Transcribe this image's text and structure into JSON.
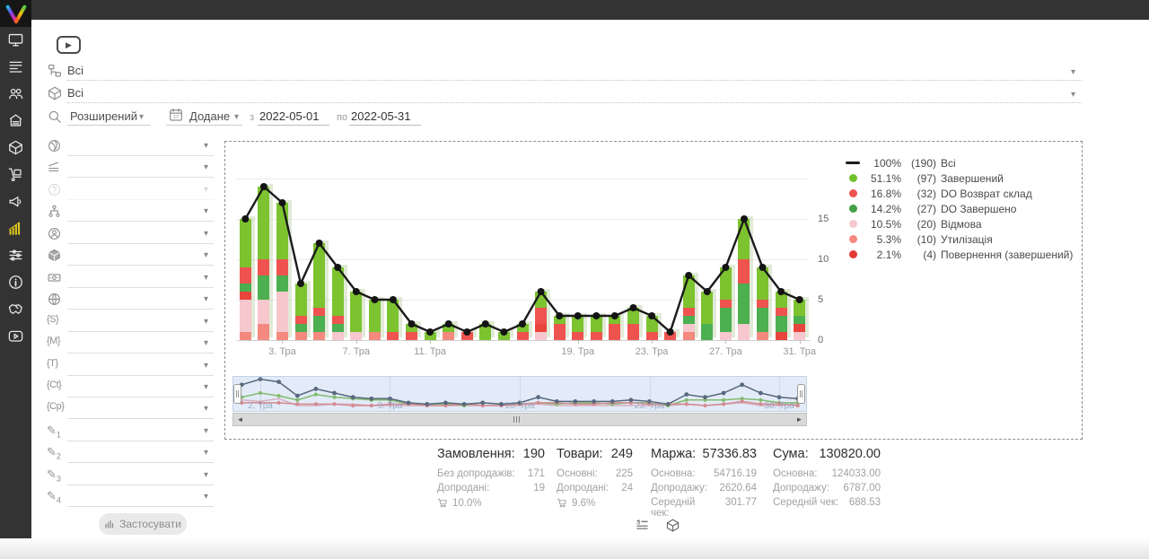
{
  "glyphs": {
    "dropdown": "▾",
    "play": "▶",
    "scroll_left": "◄",
    "scroll_right": "►"
  },
  "topbar": {
    "icons": [
      "user-icon",
      "bell-icon",
      "support-headset-icon"
    ]
  },
  "sidebar": {
    "items": [
      {
        "icon": "monitor-icon",
        "name": "dashboard"
      },
      {
        "icon": "orders-list-icon",
        "name": "orders"
      },
      {
        "icon": "clients-icon",
        "name": "clients"
      },
      {
        "icon": "store-icon",
        "name": "store"
      },
      {
        "icon": "package-icon",
        "name": "products"
      },
      {
        "icon": "trolley-icon",
        "name": "supply"
      },
      {
        "icon": "megaphone-icon",
        "name": "marketing"
      },
      {
        "icon": "bar-chart-icon",
        "name": "analytics",
        "active": true
      },
      {
        "icon": "sliders-icon",
        "name": "settings"
      },
      {
        "icon": "info-icon",
        "name": "info"
      },
      {
        "icon": "handshake-icon",
        "name": "partners"
      },
      {
        "icon": "video-icon",
        "name": "video"
      }
    ]
  },
  "filters": {
    "tree_value": "Всі",
    "product_value": "Всі",
    "mode": "Розширений",
    "date_field": "Додане",
    "from_label": "з",
    "from": "2022-05-01",
    "to_label": "по",
    "to": "2022-05-31",
    "apply": "Застосувати",
    "side_rows": [
      {
        "icon": "globe-swirl-icon"
      },
      {
        "icon": "layers-sort-icon"
      },
      {
        "icon": "help-icon",
        "disabled": true
      },
      {
        "icon": "hierarchy-icon"
      },
      {
        "icon": "user-circle-icon"
      },
      {
        "icon": "cube-icon"
      },
      {
        "icon": "banknote-icon"
      },
      {
        "icon": "globe-grid-icon"
      },
      {
        "icon": "tag-s-icon",
        "glyph": "{S}"
      },
      {
        "icon": "tag-m-icon",
        "glyph": "{M}"
      },
      {
        "icon": "tag-t-icon",
        "glyph": "{T}"
      },
      {
        "icon": "tag-ct-icon",
        "glyph": "{Ct}"
      },
      {
        "icon": "tag-cp-icon",
        "glyph": "{Cp}"
      },
      {
        "icon": "pencil-icon",
        "glyph": "✎",
        "index": "1"
      },
      {
        "icon": "pencil-icon",
        "glyph": "✎",
        "index": "2"
      },
      {
        "icon": "pencil-icon",
        "glyph": "✎",
        "index": "3"
      },
      {
        "icon": "pencil-icon",
        "glyph": "✎",
        "index": "4"
      }
    ]
  },
  "chart_data": {
    "type": "bar",
    "stacked": true,
    "title": "",
    "ylim": [
      0,
      20
    ],
    "yticks": [
      0,
      5,
      10,
      15
    ],
    "days_in_month": 31,
    "month_label": "Тра",
    "xticks": [
      {
        "day": 3,
        "label": "3. Тра"
      },
      {
        "day": 7,
        "label": "7. Тра"
      },
      {
        "day": 11,
        "label": "11. Тра"
      },
      {
        "day": 19,
        "label": "19. Тра"
      },
      {
        "day": 23,
        "label": "23. Тра"
      },
      {
        "day": 27,
        "label": "27. Тра"
      },
      {
        "day": 31,
        "label": "31. Тра"
      }
    ],
    "line": {
      "name": "Всі",
      "color": "#1b1b1b",
      "total": 190,
      "values": [
        15,
        19,
        17,
        7,
        12,
        9,
        6,
        5,
        5,
        2,
        1,
        2,
        1,
        2,
        1,
        2,
        6,
        3,
        3,
        3,
        3,
        4,
        3,
        1,
        8,
        6,
        9,
        15,
        9,
        6,
        5
      ]
    },
    "stack_order_bottom_to_top": [
      "Утилізація",
      "Відмова",
      "Повернення (завершений)",
      "DO Завершено",
      "DO Возврат склад",
      "Завершений"
    ],
    "series": [
      {
        "name": "Завершений",
        "color": "#7cc32f",
        "total": 97,
        "values": [
          6,
          9,
          7,
          4,
          8,
          6,
          5,
          4,
          4,
          1,
          1,
          1,
          0,
          2,
          1,
          1,
          2,
          1,
          2,
          2,
          1,
          2,
          2,
          0,
          4,
          4,
          4,
          5,
          4,
          2,
          2
        ]
      },
      {
        "name": "DO Возврат склад",
        "color": "#ef5350",
        "total": 32,
        "values": [
          2,
          2,
          2,
          1,
          1,
          1,
          0,
          0,
          1,
          1,
          0,
          0,
          1,
          0,
          0,
          1,
          2,
          2,
          1,
          1,
          2,
          2,
          1,
          1,
          1,
          0,
          1,
          3,
          1,
          1,
          0
        ]
      },
      {
        "name": "DO Завершено",
        "color": "#4caf50",
        "total": 27,
        "values": [
          1,
          3,
          2,
          1,
          2,
          1,
          0,
          0,
          0,
          0,
          0,
          0,
          0,
          0,
          0,
          0,
          0,
          0,
          0,
          0,
          0,
          0,
          0,
          0,
          1,
          2,
          3,
          5,
          3,
          2,
          1
        ]
      },
      {
        "name": "Відмова",
        "color": "#f6c7cd",
        "total": 20,
        "values": [
          4,
          3,
          5,
          0,
          0,
          1,
          1,
          0,
          0,
          0,
          0,
          0,
          0,
          0,
          0,
          0,
          1,
          0,
          0,
          0,
          0,
          0,
          0,
          0,
          1,
          0,
          1,
          2,
          0,
          0,
          1
        ]
      },
      {
        "name": "Утилізація",
        "color": "#f4897f",
        "total": 10,
        "values": [
          1,
          2,
          1,
          1,
          1,
          0,
          0,
          1,
          0,
          0,
          0,
          1,
          0,
          0,
          0,
          0,
          0,
          0,
          0,
          0,
          0,
          0,
          0,
          0,
          1,
          0,
          0,
          0,
          1,
          0,
          0
        ]
      },
      {
        "name": "Повернення (завершений)",
        "color": "#e8453c",
        "total": 4,
        "values": [
          1,
          0,
          0,
          0,
          0,
          0,
          0,
          0,
          0,
          0,
          0,
          0,
          0,
          0,
          0,
          0,
          1,
          0,
          0,
          0,
          0,
          0,
          0,
          0,
          0,
          0,
          0,
          0,
          0,
          1,
          1
        ]
      }
    ]
  },
  "legend": [
    {
      "marker": "line",
      "color": "#1b1b1b",
      "pct": "100%",
      "count": "(190)",
      "label": "Всі"
    },
    {
      "marker": "dot",
      "color": "#72c02c",
      "pct": "51.1%",
      "count": "(97)",
      "label": "Завершений"
    },
    {
      "marker": "dot",
      "color": "#ef5350",
      "pct": "16.8%",
      "count": "(32)",
      "label": "DO Возврат склад"
    },
    {
      "marker": "dot",
      "color": "#43a047",
      "pct": "14.2%",
      "count": "(27)",
      "label": "DO Завершено"
    },
    {
      "marker": "dot",
      "color": "#f6c7cd",
      "pct": "10.5%",
      "count": "(20)",
      "label": "Відмова"
    },
    {
      "marker": "dot",
      "color": "#f4897f",
      "pct": "5.3%",
      "count": "(10)",
      "label": "Утилізація"
    },
    {
      "marker": "dot",
      "color": "#e53935",
      "pct": "2.1%",
      "count": "(4)",
      "label": "Повернення (завершений)"
    }
  ],
  "navigator": {
    "labels": [
      {
        "day": 2,
        "label": "2. Тра"
      },
      {
        "day": 9,
        "label": "9. Тра"
      },
      {
        "day": 16,
        "label": "16. Тра"
      },
      {
        "day": 23,
        "label": "23. Тра"
      },
      {
        "day": 30,
        "label": "30. Тра"
      }
    ]
  },
  "stats": {
    "columns": [
      {
        "title": "Замовлення:",
        "value": "190",
        "rows": [
          {
            "label": "Без допродажів:",
            "value": "171"
          },
          {
            "label": "Допродані:",
            "value": "19"
          }
        ],
        "cart_pct": "10.0%"
      },
      {
        "title": "Товари:",
        "value": "249",
        "rows": [
          {
            "label": "Основні:",
            "value": "225"
          },
          {
            "label": "Допродані:",
            "value": "24"
          }
        ],
        "cart_pct": "9.6%"
      },
      {
        "title": "Маржа:",
        "value": "57336.83",
        "rows": [
          {
            "label": "Основна:",
            "value": "54716.19"
          },
          {
            "label": "Допродажу:",
            "value": "2620.64"
          },
          {
            "label": "Середній чек:",
            "value": "301.77"
          }
        ]
      },
      {
        "title": "Сума:",
        "value": "130820.00",
        "rows": [
          {
            "label": "Основна:",
            "value": "124033.00"
          },
          {
            "label": "Допродажу:",
            "value": "6787.00"
          },
          {
            "label": "Середній чек:",
            "value": "688.53"
          }
        ]
      }
    ]
  }
}
